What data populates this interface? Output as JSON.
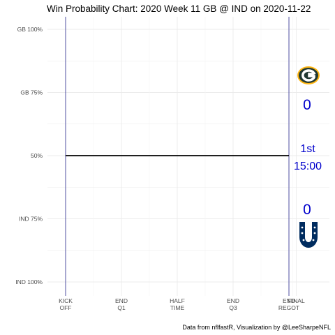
{
  "chart_data": {
    "type": "line",
    "title": "Win Probability Chart: 2020 Week 11 GB @ IND on 2020-11-22",
    "caption": "Data from nflfastR, Visualization by @LeeSharpeNFL",
    "xlim": [
      0,
      3600
    ],
    "ylim": [
      0,
      1
    ],
    "grid": true,
    "y_ticks": [
      {
        "value": 1.0,
        "label": "GB 100%"
      },
      {
        "value": 0.75,
        "label": "GB 75%"
      },
      {
        "value": 0.5,
        "label": "50%"
      },
      {
        "value": 0.25,
        "label": "IND 75%"
      },
      {
        "value": 0.0,
        "label": "IND 100%"
      }
    ],
    "x_ticks": [
      {
        "value": 0,
        "line1": "KICK",
        "line2": "OFF"
      },
      {
        "value": 900,
        "line1": "END",
        "line2": "Q1"
      },
      {
        "value": 1800,
        "line1": "HALF",
        "line2": "TIME"
      },
      {
        "value": 2700,
        "line1": "END",
        "line2": "Q3"
      },
      {
        "value": 3600,
        "line1": "END",
        "line2": "REGOT"
      },
      {
        "value": 3720,
        "line1": "FINAL",
        "line2": ""
      }
    ],
    "series": [
      {
        "x": [
          0,
          3600
        ],
        "y": [
          0.5,
          0.5
        ],
        "color": "#000000"
      }
    ],
    "vlines": [
      0,
      3600
    ],
    "vline_color": "#3d3d99"
  },
  "scoreboard": {
    "home_score": "0",
    "away_score": "0",
    "quarter": "1st",
    "clock": "15:00",
    "away_logo": "packers-logo-icon",
    "home_logo": "colts-logo-icon",
    "text_color": "#0000cc",
    "packers_green": "#203731",
    "packers_gold": "#ffb612",
    "colts_blue": "#002c5f"
  }
}
